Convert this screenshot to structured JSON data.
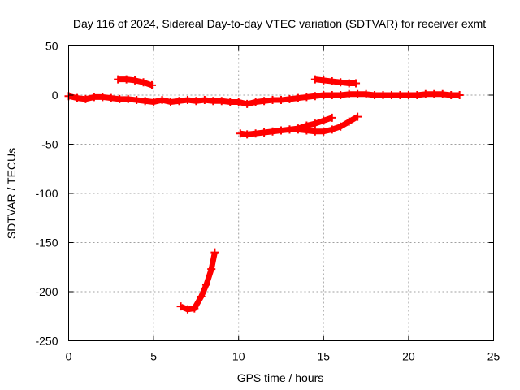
{
  "chart_data": {
    "type": "line",
    "title": "Day 116 of 2024, Sidereal Day-to-day VTEC variation (SDTVAR) for receiver exmt",
    "xlabel": "GPS time / hours",
    "ylabel": "SDTVAR / TECUs",
    "xlim": [
      0,
      25
    ],
    "ylim": [
      -250,
      50
    ],
    "xticks": [
      0,
      5,
      10,
      15,
      20,
      25
    ],
    "yticks": [
      50,
      0,
      -50,
      -100,
      -150,
      -200,
      -250
    ],
    "grid": true,
    "color": "#ff0000",
    "series": [
      {
        "name": "arc-main-baseline",
        "points": [
          [
            0.0,
            -1
          ],
          [
            0.5,
            -3
          ],
          [
            1.0,
            -4
          ],
          [
            1.5,
            -2
          ],
          [
            2.0,
            -2
          ],
          [
            2.5,
            -3
          ],
          [
            3.0,
            -4
          ],
          [
            3.5,
            -4
          ],
          [
            4.0,
            -5
          ],
          [
            4.5,
            -6
          ],
          [
            5.0,
            -7
          ],
          [
            5.5,
            -5
          ],
          [
            6.0,
            -7
          ],
          [
            6.5,
            -6
          ],
          [
            7.0,
            -5
          ],
          [
            7.5,
            -6
          ],
          [
            8.0,
            -5
          ],
          [
            8.5,
            -6
          ],
          [
            9.0,
            -6
          ],
          [
            9.5,
            -7
          ],
          [
            10.0,
            -7
          ],
          [
            10.5,
            -9
          ],
          [
            11.0,
            -7
          ],
          [
            11.5,
            -6
          ],
          [
            12.0,
            -5
          ],
          [
            12.5,
            -5
          ],
          [
            13.0,
            -4
          ],
          [
            13.5,
            -3
          ],
          [
            14.0,
            -2
          ],
          [
            14.5,
            -1
          ],
          [
            15.0,
            0
          ],
          [
            15.5,
            0
          ],
          [
            16.0,
            0
          ],
          [
            16.5,
            1
          ],
          [
            17.0,
            1
          ],
          [
            17.5,
            1
          ],
          [
            18.0,
            0
          ],
          [
            18.5,
            0
          ],
          [
            19.0,
            0
          ],
          [
            19.5,
            0
          ],
          [
            20.0,
            0
          ],
          [
            20.5,
            0
          ],
          [
            21.0,
            1
          ],
          [
            21.5,
            1
          ],
          [
            22.0,
            1
          ],
          [
            22.5,
            0
          ],
          [
            23.0,
            0
          ]
        ]
      },
      {
        "name": "arc-upper-left",
        "points": [
          [
            2.9,
            16
          ],
          [
            3.4,
            16
          ],
          [
            3.9,
            15
          ],
          [
            4.4,
            13
          ],
          [
            4.9,
            10
          ]
        ]
      },
      {
        "name": "arc-upper-right",
        "points": [
          [
            14.5,
            16
          ],
          [
            15.0,
            15
          ],
          [
            15.5,
            14
          ],
          [
            16.0,
            13
          ],
          [
            16.5,
            12
          ],
          [
            16.9,
            12
          ]
        ]
      },
      {
        "name": "arc-lower-left",
        "points": [
          [
            10.1,
            -39
          ],
          [
            10.5,
            -40
          ],
          [
            11.0,
            -39
          ],
          [
            11.5,
            -38
          ],
          [
            12.0,
            -37
          ],
          [
            12.5,
            -36
          ],
          [
            13.0,
            -35
          ],
          [
            13.5,
            -34
          ],
          [
            14.0,
            -31
          ],
          [
            14.5,
            -29
          ],
          [
            15.0,
            -26
          ],
          [
            15.5,
            -23
          ]
        ]
      },
      {
        "name": "arc-lower-right",
        "points": [
          [
            13.0,
            -35
          ],
          [
            13.5,
            -35
          ],
          [
            14.0,
            -36
          ],
          [
            14.5,
            -37
          ],
          [
            15.0,
            -37
          ],
          [
            15.5,
            -35
          ],
          [
            16.0,
            -32
          ],
          [
            16.5,
            -27
          ],
          [
            17.0,
            -22
          ]
        ]
      },
      {
        "name": "arc-deep-dip",
        "points": [
          [
            6.6,
            -215
          ],
          [
            7.0,
            -218
          ],
          [
            7.4,
            -217
          ],
          [
            7.8,
            -205
          ],
          [
            8.1,
            -193
          ],
          [
            8.4,
            -177
          ],
          [
            8.6,
            -160
          ]
        ]
      }
    ]
  }
}
